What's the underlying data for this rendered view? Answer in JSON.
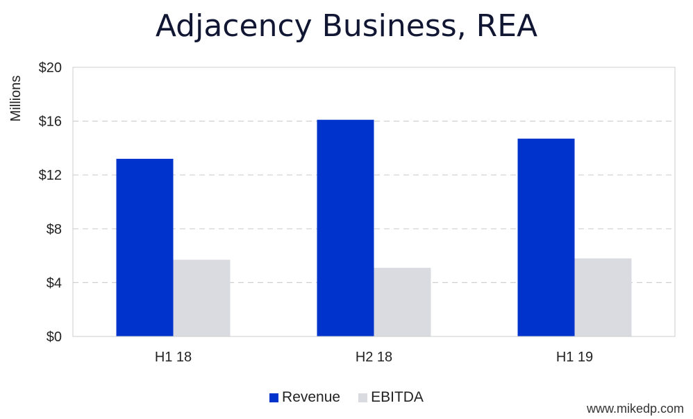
{
  "chart_data": {
    "type": "bar",
    "title": "Adjacency Business, REA",
    "ylabel": "Millions",
    "xlabel": "",
    "categories": [
      "H1 18",
      "H2 18",
      "H1 19"
    ],
    "series": [
      {
        "name": "Revenue",
        "values": [
          13.2,
          16.1,
          14.7
        ],
        "color": "#0033cc"
      },
      {
        "name": "EBITDA",
        "values": [
          5.7,
          5.1,
          5.8
        ],
        "color": "#d9dbe1"
      }
    ],
    "ylim": [
      0,
      20
    ],
    "yticks": [
      0,
      4,
      8,
      12,
      16,
      20
    ],
    "ytick_labels": [
      "$0",
      "$4",
      "$8",
      "$12",
      "$16",
      "$20"
    ],
    "grid": true,
    "legend_position": "bottom-center"
  },
  "watermark": "www.mikedp.com"
}
